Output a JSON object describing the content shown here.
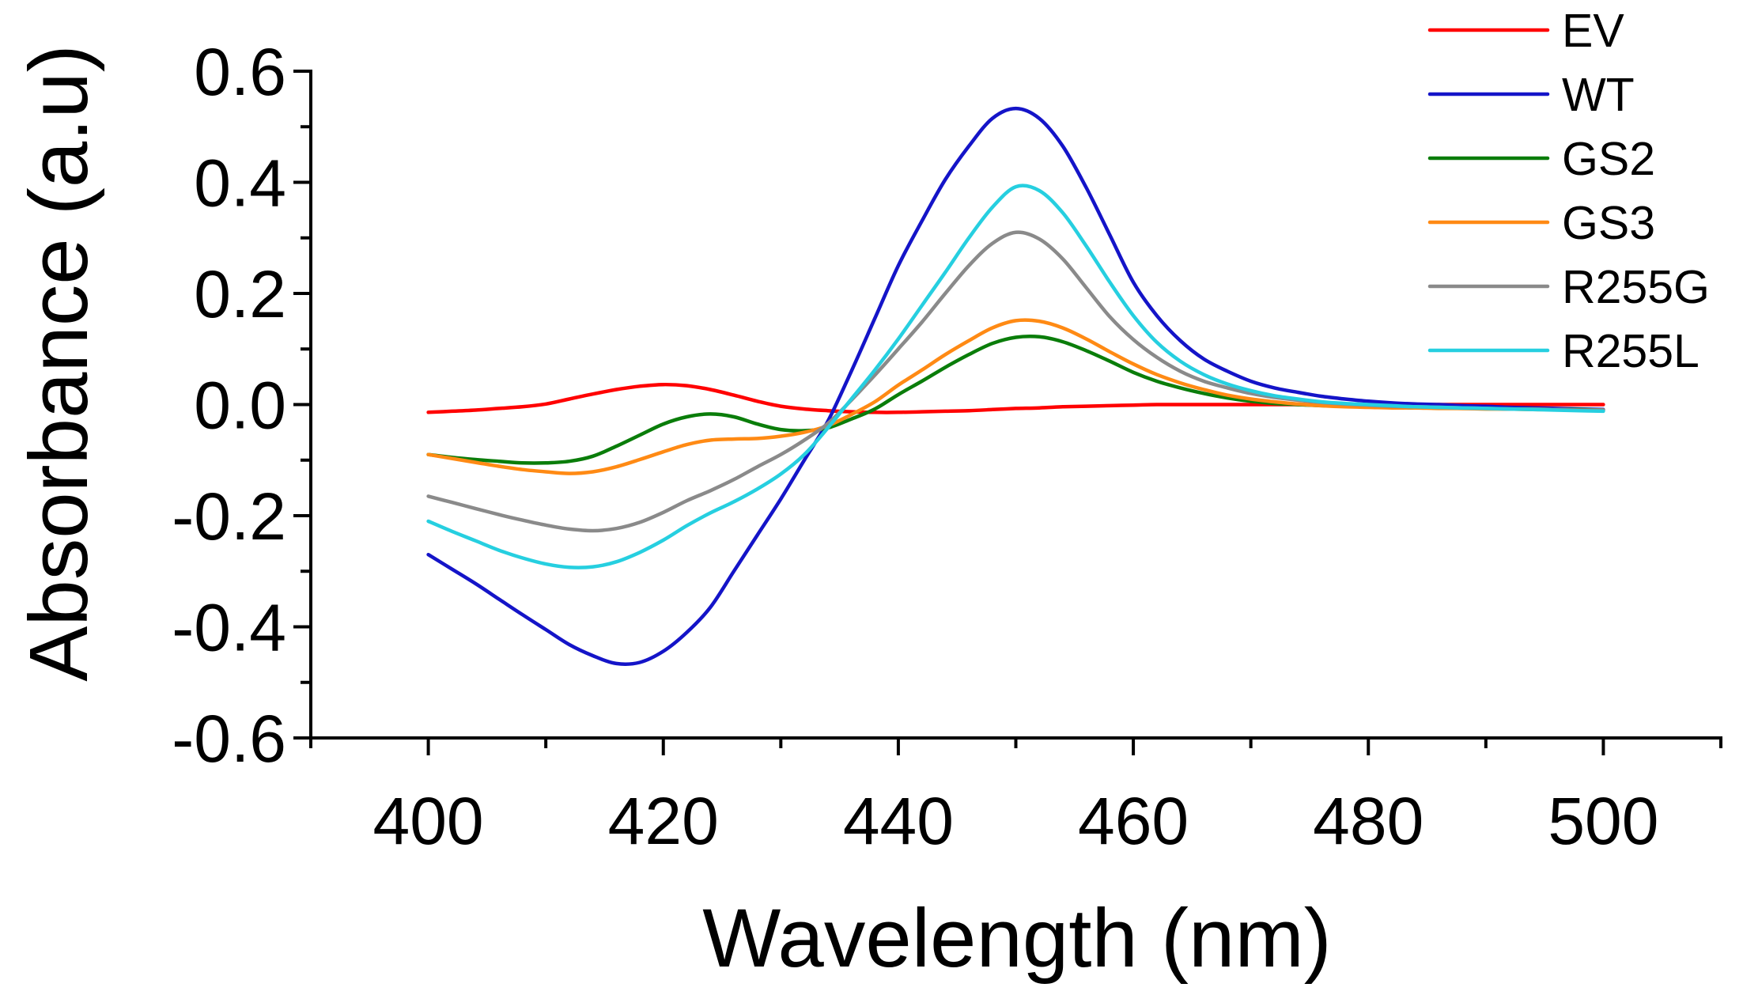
{
  "chart_data": {
    "type": "line",
    "xlabel": "Wavelength (nm)",
    "ylabel": "Absorbance (a.u)",
    "xlim": [
      390,
      510
    ],
    "ylim": [
      -0.6,
      0.6
    ],
    "x_major_ticks": [
      400,
      420,
      440,
      460,
      480,
      500
    ],
    "x_tick_labels": [
      "400",
      "420",
      "440",
      "460",
      "480",
      "500"
    ],
    "x_minor_ticks": [
      390,
      410,
      430,
      450,
      470,
      490,
      510
    ],
    "y_major_ticks": [
      0.6,
      0.4,
      0.2,
      0.0,
      -0.2,
      -0.4,
      -0.6
    ],
    "y_tick_labels": [
      "0.6",
      "0.4",
      "0.2",
      "0.0",
      "-0.2",
      "-0.4",
      "-0.6"
    ],
    "y_minor_ticks": [
      0.5,
      0.3,
      0.1,
      -0.1,
      -0.3,
      -0.5
    ],
    "grid": false,
    "legend": "top-right",
    "x": [
      400,
      402,
      404,
      406,
      408,
      410,
      412,
      414,
      416,
      418,
      420,
      422,
      424,
      426,
      428,
      430,
      432,
      434,
      436,
      438,
      440,
      442,
      444,
      446,
      448,
      450,
      452,
      454,
      456,
      458,
      460,
      462,
      464,
      466,
      468,
      470,
      472,
      474,
      476,
      478,
      480,
      482,
      484,
      486,
      488,
      490,
      492,
      494,
      496,
      498,
      500
    ],
    "series": [
      {
        "name": "EV",
        "color": "#ff0000",
        "values": [
          -0.014,
          -0.012,
          -0.01,
          -0.007,
          -0.004,
          0.001,
          0.01,
          0.019,
          0.027,
          0.033,
          0.036,
          0.034,
          0.027,
          0.017,
          0.006,
          -0.003,
          -0.008,
          -0.011,
          -0.013,
          -0.014,
          -0.014,
          -0.013,
          -0.012,
          -0.011,
          -0.009,
          -0.007,
          -0.006,
          -0.004,
          -0.003,
          -0.002,
          -0.001,
          0,
          0,
          0,
          0,
          0,
          0,
          0,
          0,
          0,
          0,
          0,
          0,
          0,
          0,
          0,
          0,
          0,
          0,
          0,
          0
        ]
      },
      {
        "name": "WT",
        "color": "#1414c8",
        "values": [
          -0.27,
          -0.296,
          -0.322,
          -0.35,
          -0.378,
          -0.405,
          -0.432,
          -0.452,
          -0.466,
          -0.464,
          -0.444,
          -0.41,
          -0.365,
          -0.3,
          -0.235,
          -0.17,
          -0.1,
          -0.03,
          0.06,
          0.155,
          0.25,
          0.33,
          0.405,
          0.465,
          0.515,
          0.533,
          0.515,
          0.465,
          0.39,
          0.305,
          0.22,
          0.16,
          0.115,
          0.082,
          0.06,
          0.042,
          0.03,
          0.022,
          0.015,
          0.01,
          0.006,
          0.003,
          0.001,
          0,
          -0.002,
          -0.003,
          -0.005,
          -0.006,
          -0.007,
          -0.008,
          -0.009
        ]
      },
      {
        "name": "GS2",
        "color": "#0a7d0a",
        "values": [
          -0.09,
          -0.095,
          -0.099,
          -0.102,
          -0.105,
          -0.105,
          -0.102,
          -0.093,
          -0.075,
          -0.055,
          -0.035,
          -0.022,
          -0.017,
          -0.022,
          -0.035,
          -0.045,
          -0.047,
          -0.042,
          -0.026,
          -0.008,
          0.018,
          0.042,
          0.067,
          0.09,
          0.11,
          0.121,
          0.122,
          0.113,
          0.097,
          0.078,
          0.058,
          0.042,
          0.03,
          0.02,
          0.012,
          0.006,
          0.002,
          0,
          -0.002,
          -0.003,
          -0.004,
          -0.005,
          -0.006,
          -0.006,
          -0.007,
          -0.007,
          -0.008,
          -0.008,
          -0.009,
          -0.009,
          -0.01
        ]
      },
      {
        "name": "GS3",
        "color": "#ff8a14",
        "values": [
          -0.09,
          -0.097,
          -0.104,
          -0.111,
          -0.117,
          -0.121,
          -0.124,
          -0.121,
          -0.112,
          -0.099,
          -0.085,
          -0.072,
          -0.064,
          -0.062,
          -0.061,
          -0.057,
          -0.05,
          -0.038,
          -0.018,
          0.005,
          0.035,
          0.062,
          0.09,
          0.115,
          0.138,
          0.151,
          0.15,
          0.138,
          0.118,
          0.095,
          0.073,
          0.054,
          0.039,
          0.027,
          0.017,
          0.01,
          0.005,
          0.001,
          -0.002,
          -0.004,
          -0.005,
          -0.006,
          -0.006,
          -0.007,
          -0.007,
          -0.008,
          -0.008,
          -0.009,
          -0.009,
          -0.01,
          -0.01
        ]
      },
      {
        "name": "R255G",
        "color": "#8a8a8a",
        "values": [
          -0.165,
          -0.176,
          -0.187,
          -0.198,
          -0.208,
          -0.217,
          -0.224,
          -0.227,
          -0.223,
          -0.212,
          -0.194,
          -0.173,
          -0.155,
          -0.135,
          -0.112,
          -0.09,
          -0.064,
          -0.034,
          0.008,
          0.053,
          0.1,
          0.148,
          0.2,
          0.25,
          0.29,
          0.31,
          0.298,
          0.262,
          0.21,
          0.158,
          0.117,
          0.085,
          0.06,
          0.042,
          0.03,
          0.02,
          0.013,
          0.008,
          0.004,
          0.001,
          -0.001,
          -0.003,
          -0.004,
          -0.005,
          -0.006,
          -0.007,
          -0.008,
          -0.008,
          -0.009,
          -0.01,
          -0.01
        ]
      },
      {
        "name": "R255L",
        "color": "#26cfe0",
        "values": [
          -0.21,
          -0.228,
          -0.245,
          -0.262,
          -0.276,
          -0.287,
          -0.293,
          -0.292,
          -0.283,
          -0.266,
          -0.244,
          -0.218,
          -0.195,
          -0.175,
          -0.152,
          -0.125,
          -0.09,
          -0.042,
          0.01,
          0.062,
          0.118,
          0.178,
          0.238,
          0.3,
          0.355,
          0.392,
          0.385,
          0.345,
          0.285,
          0.22,
          0.16,
          0.112,
          0.078,
          0.054,
          0.037,
          0.025,
          0.016,
          0.01,
          0.005,
          0.002,
          0,
          -0.002,
          -0.004,
          -0.005,
          -0.006,
          -0.007,
          -0.008,
          -0.009,
          -0.01,
          -0.011,
          -0.012
        ]
      }
    ]
  }
}
